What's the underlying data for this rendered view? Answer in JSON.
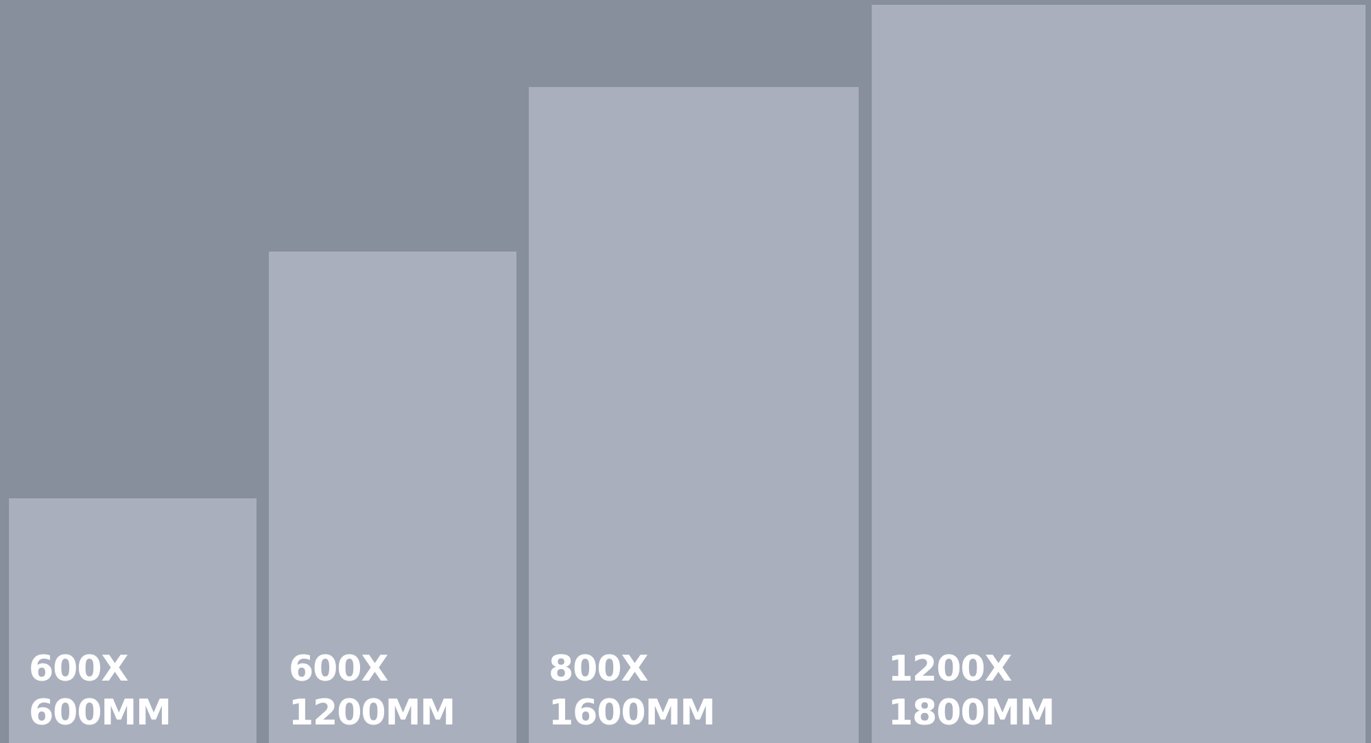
{
  "sizes": [
    {
      "line1": "600X",
      "line2": "600MM"
    },
    {
      "line1": "600X",
      "line2": "1200MM"
    },
    {
      "line1": "800X",
      "line2": "1600MM"
    },
    {
      "line1": "1200X",
      "line2": "1800MM"
    }
  ],
  "colors": {
    "background": "#878e9c",
    "tile": "#a9afbd",
    "label": "#ffffff"
  }
}
